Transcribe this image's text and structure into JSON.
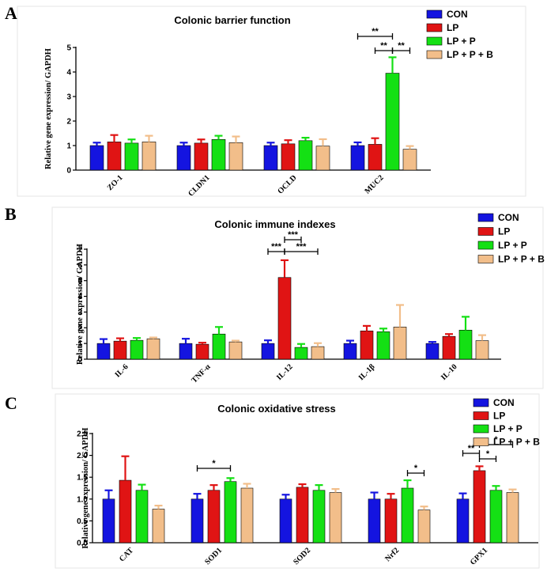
{
  "panel_letters": [
    "A",
    "B",
    "C"
  ],
  "legend": {
    "series": [
      {
        "name": "CON",
        "color": "#1414E0"
      },
      {
        "name": "LP",
        "color": "#E01414"
      },
      {
        "name": "LP + P",
        "color": "#14E014"
      },
      {
        "name": "LP + P + B",
        "color": "#F2BE8A"
      }
    ]
  },
  "chart_data": [
    {
      "type": "bar",
      "title": "Colonic barrier function",
      "ylabel": "Relative gene expression/ GAPDH",
      "ylim": [
        0,
        5
      ],
      "yticks": [
        "0",
        "1",
        "2",
        "3",
        "4",
        "5"
      ],
      "categories": [
        "ZO-1",
        "CLDN1",
        "OCLD",
        "MUC2"
      ],
      "series": [
        {
          "name": "CON",
          "values": [
            1.0,
            1.0,
            1.0,
            1.0
          ],
          "errors": [
            0.12,
            0.12,
            0.12,
            0.13
          ]
        },
        {
          "name": "LP",
          "values": [
            1.15,
            1.1,
            1.07,
            1.05
          ],
          "errors": [
            0.28,
            0.15,
            0.15,
            0.25
          ]
        },
        {
          "name": "LP + P",
          "values": [
            1.1,
            1.25,
            1.2,
            3.95
          ],
          "errors": [
            0.15,
            0.15,
            0.12,
            0.65
          ]
        },
        {
          "name": "LP + P + B",
          "values": [
            1.15,
            1.12,
            0.98,
            0.85
          ],
          "errors": [
            0.25,
            0.25,
            0.28,
            0.13
          ]
        }
      ],
      "significance": [
        {
          "category": "MUC2",
          "from": "CON",
          "to": "LP + P",
          "label": "**"
        },
        {
          "category": "MUC2",
          "from": "LP",
          "to": "LP + P",
          "label": "**"
        },
        {
          "category": "MUC2",
          "from": "LP + P",
          "to": "LP + P + B",
          "label": "**"
        }
      ]
    },
    {
      "type": "bar",
      "title": "Colonic immune indexes",
      "ylabel": "Relative gene expression/ GAPDH",
      "ylim": [
        0,
        7
      ],
      "yticks": [
        "0",
        "1",
        "2",
        "3",
        "4",
        "5",
        "6",
        "7"
      ],
      "categories": [
        "IL-6",
        "TNF-α",
        "IL-12",
        "IL-1β",
        "IL-10"
      ],
      "series": [
        {
          "name": "CON",
          "values": [
            1.0,
            1.0,
            1.0,
            1.0,
            1.0
          ],
          "errors": [
            0.28,
            0.3,
            0.2,
            0.18,
            0.1
          ]
        },
        {
          "name": "LP",
          "values": [
            1.15,
            0.95,
            5.2,
            1.8,
            1.45
          ],
          "errors": [
            0.18,
            0.1,
            1.1,
            0.32,
            0.15
          ]
        },
        {
          "name": "LP + P",
          "values": [
            1.2,
            1.6,
            0.75,
            1.75,
            1.85
          ],
          "errors": [
            0.15,
            0.45,
            0.22,
            0.2,
            0.85
          ]
        },
        {
          "name": "LP + P + B",
          "values": [
            1.3,
            1.1,
            0.8,
            2.05,
            1.18
          ],
          "errors": [
            0.08,
            0.08,
            0.22,
            1.4,
            0.35
          ]
        }
      ],
      "significance": [
        {
          "category": "IL-12",
          "from": "CON",
          "to": "LP",
          "label": "***"
        },
        {
          "category": "IL-12",
          "from": "LP",
          "to": "LP + P",
          "label": "***"
        },
        {
          "category": "IL-12",
          "from": "LP",
          "to": "LP + P + B",
          "label": "***"
        }
      ]
    },
    {
      "type": "bar",
      "title": "Colonic oxidative stress",
      "ylabel": "Relative gene expression/ GAPDH",
      "ylim": [
        0,
        2.5
      ],
      "yticks": [
        "0.0",
        "0.5",
        "1.0",
        "1.5",
        "2.0",
        "2.5"
      ],
      "categories": [
        "CAT",
        "SOD1",
        "SOD2",
        "Nrf2",
        "GPX1"
      ],
      "series": [
        {
          "name": "CON",
          "values": [
            1.0,
            1.0,
            1.0,
            1.0,
            1.0
          ],
          "errors": [
            0.2,
            0.12,
            0.1,
            0.15,
            0.13
          ]
        },
        {
          "name": "LP",
          "values": [
            1.43,
            1.2,
            1.27,
            1.0,
            1.65
          ],
          "errors": [
            0.55,
            0.12,
            0.07,
            0.12,
            0.1
          ]
        },
        {
          "name": "LP + P",
          "values": [
            1.2,
            1.4,
            1.2,
            1.25,
            1.2
          ],
          "errors": [
            0.13,
            0.08,
            0.12,
            0.18,
            0.1
          ]
        },
        {
          "name": "LP + P + B",
          "values": [
            0.77,
            1.25,
            1.15,
            0.75,
            1.15
          ],
          "errors": [
            0.08,
            0.1,
            0.08,
            0.08,
            0.07
          ]
        }
      ],
      "significance": [
        {
          "category": "SOD1",
          "from": "CON",
          "to": "LP + P",
          "label": "*"
        },
        {
          "category": "Nrf2",
          "from": "LP + P",
          "to": "LP + P + B",
          "label": "*"
        },
        {
          "category": "GPX1",
          "from": "CON",
          "to": "LP",
          "label": "**"
        },
        {
          "category": "GPX1",
          "from": "LP",
          "to": "LP + P",
          "label": "*"
        },
        {
          "category": "GPX1",
          "from": "LP",
          "to": "LP + P + B",
          "label": "*"
        }
      ]
    }
  ]
}
